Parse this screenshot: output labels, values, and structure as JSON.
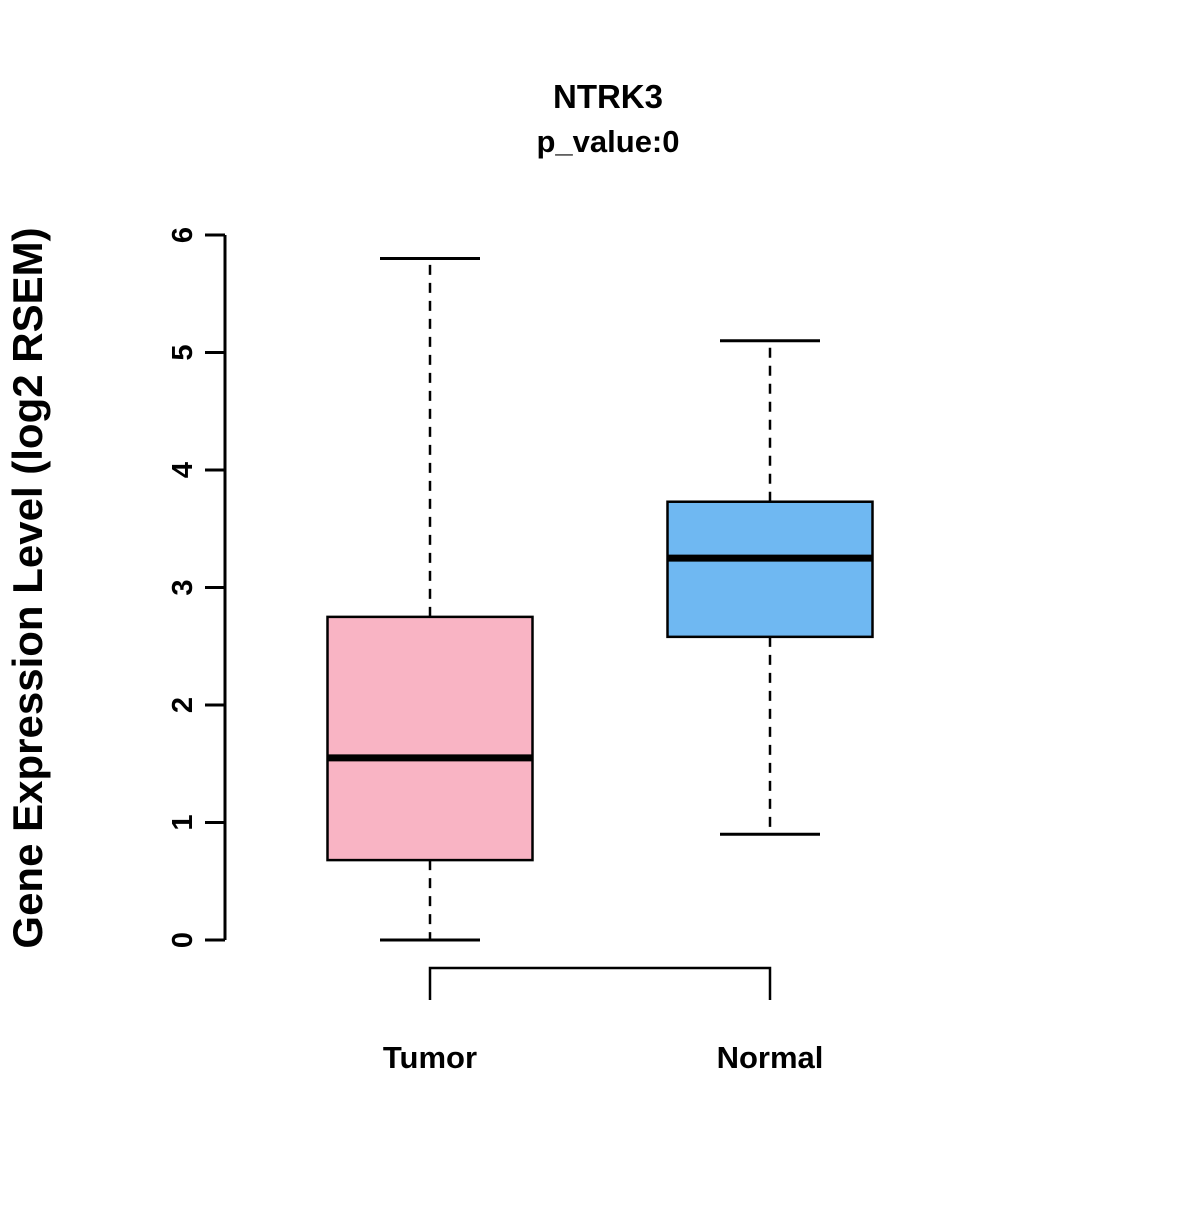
{
  "title": "NTRK3",
  "subtitle": "p_value:0",
  "ylabel": "Gene Expression Level (log2 RSEM)",
  "chart_data": {
    "type": "boxplot",
    "title": "NTRK3",
    "subtitle": "p_value:0",
    "ylabel": "Gene Expression Level (log2 RSEM)",
    "xlabel": "",
    "ylim": [
      0,
      6
    ],
    "yticks": [
      0,
      1,
      2,
      3,
      4,
      5,
      6
    ],
    "grid": false,
    "categories": [
      "Tumor",
      "Normal"
    ],
    "series": [
      {
        "name": "Tumor",
        "color": "#F9B4C4",
        "whisker_low": 0.0,
        "q1": 0.68,
        "median": 1.55,
        "q3": 2.75,
        "whisker_high": 5.8
      },
      {
        "name": "Normal",
        "color": "#6FB8F2",
        "whisker_low": 0.9,
        "q1": 2.58,
        "median": 3.25,
        "q3": 3.73,
        "whisker_high": 5.1
      }
    ]
  }
}
